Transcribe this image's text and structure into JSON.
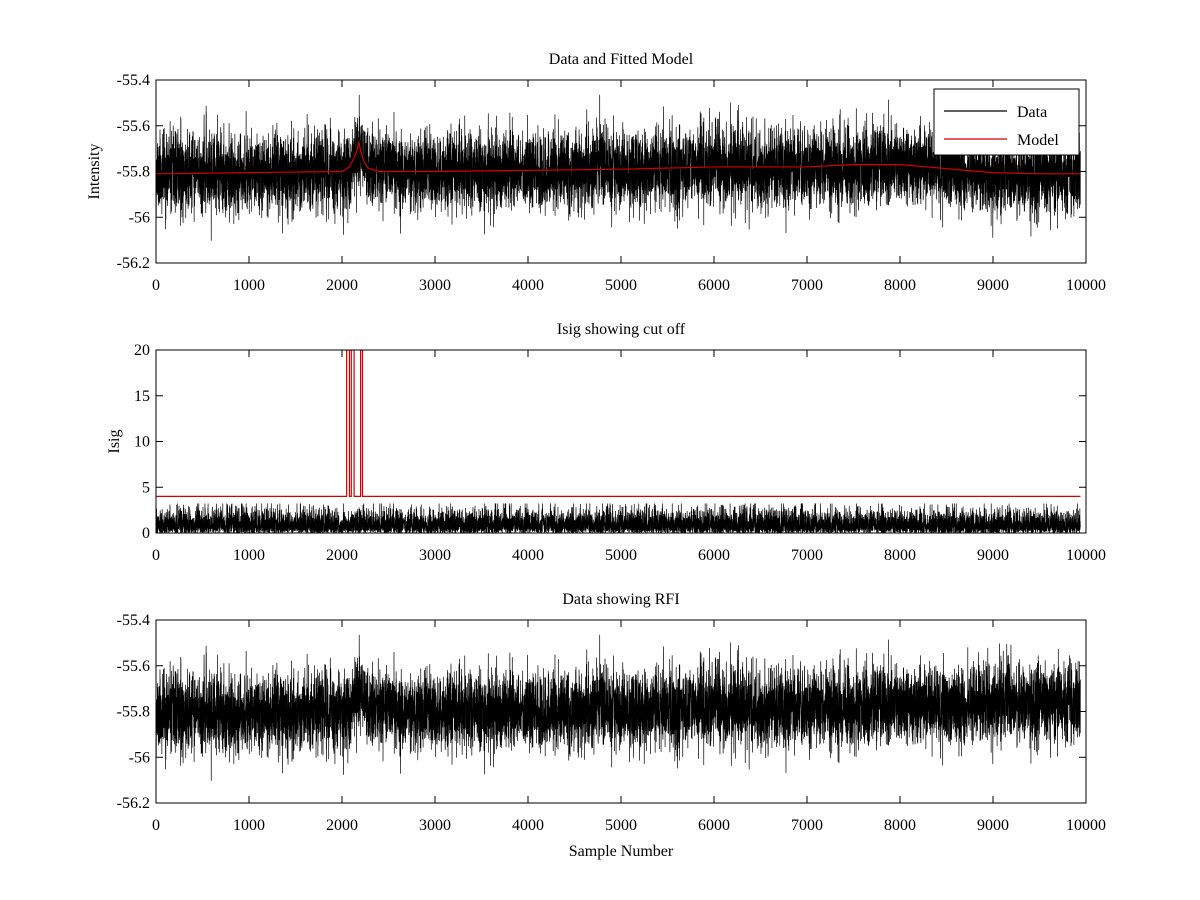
{
  "chart_data": [
    {
      "type": "line",
      "title": "Data and Fitted Model",
      "xlabel": "",
      "ylabel": "Intensity",
      "xlim": [
        0,
        10000
      ],
      "ylim": [
        -56.2,
        -55.4
      ],
      "xticks": [
        0,
        1000,
        2000,
        3000,
        4000,
        5000,
        6000,
        7000,
        8000,
        9000,
        10000
      ],
      "xtick_labels": [
        "0",
        "1000",
        "2000",
        "3000",
        "4000",
        "5000",
        "6000",
        "7000",
        "8000",
        "9000",
        "10000"
      ],
      "yticks": [
        -56.2,
        -56,
        -55.8,
        -55.6,
        -55.4
      ],
      "ytick_labels": [
        "-56.2",
        "-56",
        "-55.8",
        "-55.6",
        "-55.4"
      ],
      "legend": {
        "position": "top-right",
        "entries": [
          "Data",
          "Model"
        ]
      },
      "series": [
        {
          "name": "Data",
          "color": "#000000",
          "kind": "noise",
          "n": 9940,
          "seed": 11,
          "amplitude": 0.085,
          "baseline": {
            "x": [
              0,
              2000,
              2100,
              2180,
              2260,
              3000,
              5000,
              6000,
              7000,
              8000,
              8600,
              9000,
              9940
            ],
            "y": [
              -55.81,
              -55.8,
              -55.78,
              -55.7,
              -55.78,
              -55.8,
              -55.79,
              -55.78,
              -55.78,
              -55.77,
              -55.78,
              -55.81,
              -55.81
            ]
          }
        },
        {
          "name": "Model",
          "color": "#d40000",
          "kind": "polyline",
          "x": [
            0,
            1000,
            2000,
            2080,
            2130,
            2160,
            2180,
            2200,
            2230,
            2280,
            2400,
            3000,
            4000,
            5000,
            6000,
            7000,
            7500,
            8000,
            8300,
            8700,
            9000,
            9500,
            9940
          ],
          "y": [
            -55.81,
            -55.805,
            -55.8,
            -55.78,
            -55.74,
            -55.71,
            -55.67,
            -55.71,
            -55.75,
            -55.785,
            -55.8,
            -55.8,
            -55.795,
            -55.79,
            -55.78,
            -55.78,
            -55.77,
            -55.77,
            -55.78,
            -55.795,
            -55.805,
            -55.81,
            -55.81
          ]
        }
      ]
    },
    {
      "type": "line",
      "title": "Isig showing cut off",
      "xlabel": "",
      "ylabel": "Isig",
      "xlim": [
        0,
        10000
      ],
      "ylim": [
        0,
        20
      ],
      "xticks": [
        0,
        1000,
        2000,
        3000,
        4000,
        5000,
        6000,
        7000,
        8000,
        9000,
        10000
      ],
      "xtick_labels": [
        "0",
        "1000",
        "2000",
        "3000",
        "4000",
        "5000",
        "6000",
        "7000",
        "8000",
        "9000",
        "10000"
      ],
      "yticks": [
        0,
        5,
        10,
        15,
        20
      ],
      "ytick_labels": [
        "0",
        "5",
        "10",
        "15",
        "20"
      ],
      "series": [
        {
          "name": "Isig",
          "color": "#000000",
          "kind": "abs-noise",
          "n": 9940,
          "seed": 23,
          "amplitude": 1.2,
          "max": 3.2
        },
        {
          "name": "Cut off",
          "color": "#d40000",
          "kind": "polyline",
          "x": [
            0,
            2050,
            2050,
            2080,
            2080,
            2100,
            2100,
            2130,
            2130,
            2200,
            2200,
            2220,
            2220,
            9940
          ],
          "y": [
            4,
            4,
            20,
            20,
            4,
            4,
            20,
            20,
            4,
            4,
            20,
            20,
            4,
            4
          ]
        }
      ]
    },
    {
      "type": "line",
      "title": "Data showing RFI",
      "xlabel": "Sample Number",
      "ylabel": "",
      "xlim": [
        0,
        10000
      ],
      "ylim": [
        -56.2,
        -55.4
      ],
      "xticks": [
        0,
        1000,
        2000,
        3000,
        4000,
        5000,
        6000,
        7000,
        8000,
        9000,
        10000
      ],
      "xtick_labels": [
        "0",
        "1000",
        "2000",
        "3000",
        "4000",
        "5000",
        "6000",
        "7000",
        "8000",
        "9000",
        "10000"
      ],
      "yticks": [
        -56.2,
        -56,
        -55.8,
        -55.6,
        -55.4
      ],
      "ytick_labels": [
        "-56.2",
        "-56",
        "-55.8",
        "-55.6",
        "-55.4"
      ],
      "series": [
        {
          "name": "Data",
          "color": "#000000",
          "kind": "noise",
          "n": 9940,
          "seed": 11,
          "amplitude": 0.085,
          "baseline": {
            "x": [
              0,
              2000,
              2100,
              2180,
              2260,
              3000,
              5000,
              6000,
              7000,
              8000,
              8600,
              9000,
              9940
            ],
            "y": [
              -55.81,
              -55.8,
              -55.78,
              -55.7,
              -55.78,
              -55.8,
              -55.79,
              -55.78,
              -55.78,
              -55.77,
              -55.77,
              -55.75,
              -55.76
            ]
          }
        }
      ]
    }
  ]
}
